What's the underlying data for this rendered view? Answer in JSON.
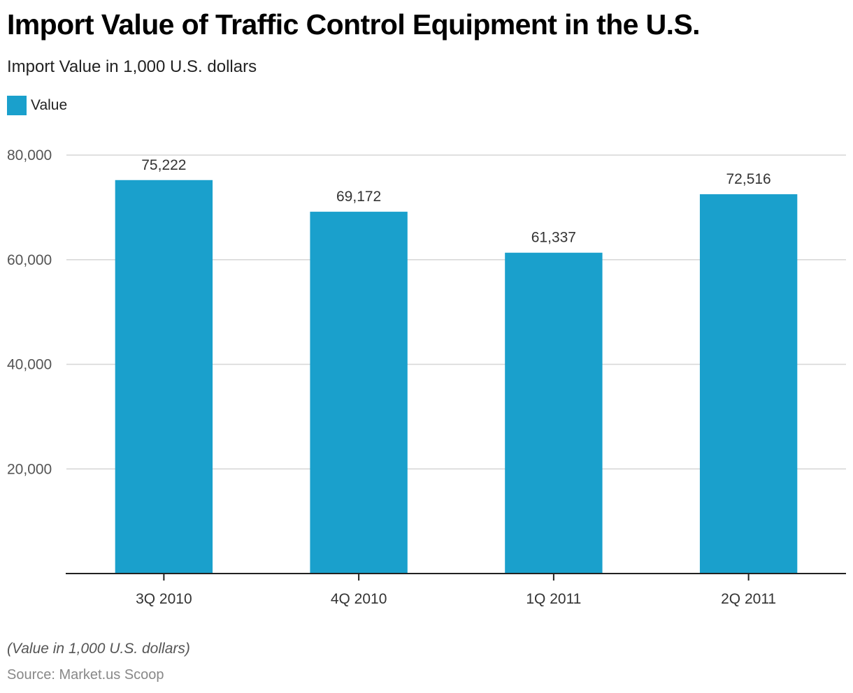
{
  "header": {
    "title": "Import Value of Traffic Control Equipment in the U.S.",
    "subtitle": "Import Value in 1,000 U.S. dollars"
  },
  "legend": {
    "items": [
      {
        "label": "Value",
        "color": "#1aa0cc"
      }
    ]
  },
  "footer": {
    "note": "(Value in 1,000 U.S. dollars)",
    "source": "Source: Market.us Scoop"
  },
  "chart_data": {
    "type": "bar",
    "title": "Import Value of Traffic Control Equipment in the U.S.",
    "subtitle": "Import Value in 1,000 U.S. dollars",
    "xlabel": "",
    "ylabel": "",
    "categories": [
      "3Q 2010",
      "4Q 2010",
      "1Q 2011",
      "2Q 2011"
    ],
    "series": [
      {
        "name": "Value",
        "color": "#1aa0cc",
        "values": [
          75222,
          69172,
          61337,
          72516
        ]
      }
    ],
    "data_labels": [
      "75,222",
      "69,172",
      "61,337",
      "72,516"
    ],
    "ylim": [
      0,
      80000
    ],
    "yticks": [
      20000,
      40000,
      60000,
      80000
    ],
    "ytick_labels": [
      "20,000",
      "40,000",
      "60,000",
      "80,000"
    ],
    "grid": true,
    "legend_position": "top-left"
  }
}
